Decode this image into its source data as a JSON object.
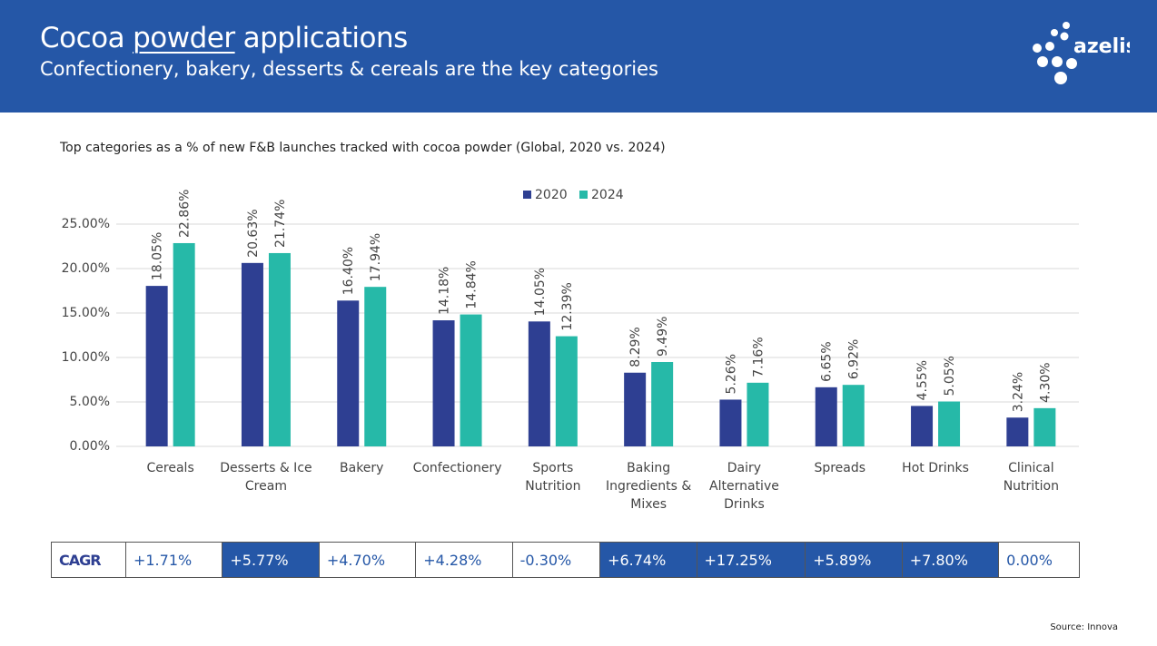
{
  "header": {
    "title_parts": [
      "Cocoa",
      "powder",
      "applications"
    ],
    "subtitle": "Confectionery, bakery, desserts & cereals are the key categories",
    "logo": "azelis"
  },
  "chart_data": {
    "type": "bar",
    "title": "Top categories as a % of new F&B launches tracked with cocoa powder (Global, 2020 vs. 2024)",
    "categories": [
      "Cereals",
      "Desserts & Ice Cream",
      "Bakery",
      "Confectionery",
      "Sports Nutrition",
      "Baking Ingredients & Mixes",
      "Dairy Alternative Drinks",
      "Spreads",
      "Hot Drinks",
      "Clinical Nutrition"
    ],
    "series": [
      {
        "name": "2020",
        "color": "#2e3f92",
        "values": [
          18.05,
          20.63,
          16.4,
          14.18,
          14.05,
          8.29,
          5.26,
          6.65,
          4.55,
          3.24
        ],
        "value_labels": [
          "18.05%",
          "20.63%",
          "16.40%",
          "14.18%",
          "14.05%",
          "8.29%",
          "5.26%",
          "6.65%",
          "4.55%",
          "3.24%"
        ]
      },
      {
        "name": "2024",
        "color": "#26b9a8",
        "values": [
          22.86,
          21.74,
          17.94,
          14.84,
          12.39,
          9.49,
          7.16,
          6.92,
          5.05,
          4.3
        ],
        "value_labels": [
          "22.86%",
          "21.74%",
          "17.94%",
          "14.84%",
          "12.39%",
          "9.49%",
          "7.16%",
          "6.92%",
          "5.05%",
          "4.30%"
        ]
      }
    ],
    "ylim": [
      0,
      25
    ],
    "yticks": [
      {
        "value": 0,
        "label": "0.00%"
      },
      {
        "value": 5,
        "label": "5.00%"
      },
      {
        "value": 10,
        "label": "10.00%"
      },
      {
        "value": 15,
        "label": "15.00%"
      },
      {
        "value": 20,
        "label": "20.00%"
      },
      {
        "value": 25,
        "label": "25.00%"
      }
    ],
    "grid": true,
    "legend": "top"
  },
  "table": {
    "header": "CAGR",
    "cells": [
      {
        "text": "+1.71%",
        "fill": "#ffffff"
      },
      {
        "text": "+5.77%",
        "fill": "#2557a7"
      },
      {
        "text": "+4.70%",
        "fill": "#ffffff"
      },
      {
        "text": "+4.28%",
        "fill": "#ffffff"
      },
      {
        "text": "-0.30%",
        "fill": "#ffffff"
      },
      {
        "text": "+6.74%",
        "fill": "#2557a7"
      },
      {
        "text": "+17.25%",
        "fill": "#2557a7"
      },
      {
        "text": "+5.89%",
        "fill": "#2557a7"
      },
      {
        "text": "+7.80%",
        "fill": "#2557a7"
      },
      {
        "text": "0.00%",
        "fill": "#ffffff"
      }
    ]
  },
  "source": "Source: Innova"
}
